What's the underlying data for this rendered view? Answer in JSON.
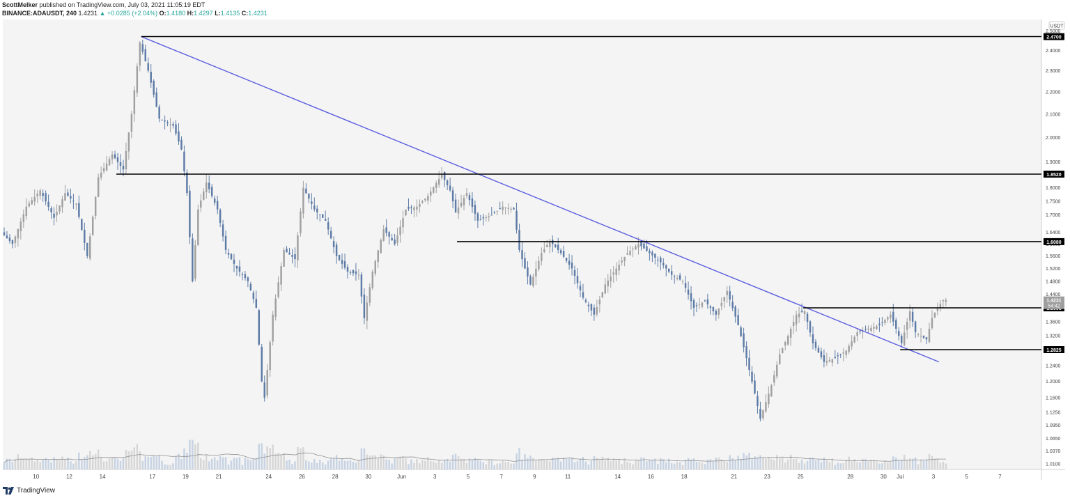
{
  "header": {
    "author": "ScottMelker",
    "published_text": "published on TradingView.com, July 03, 2021 11:05:19 EDT",
    "symbol": "BINANCE:ADAUSDT, 240",
    "last": "1.4231",
    "change_arrow": "▲",
    "change": "+0.0285 (+2.04%)",
    "o_label": "O:",
    "o_value": "1.4180",
    "h_label": "H:",
    "h_value": "1.4297",
    "l_label": "L:",
    "l_value": "1.4135",
    "c_label": "C:",
    "c_value": "1.4231"
  },
  "footer": {
    "brand": "TradingView",
    "logo_icon": "tradingview-logo-icon"
  },
  "colors": {
    "chart_bg": "#f4f4f4",
    "bull": "#a0a0a0",
    "bear": "#5d7ba6",
    "trendline": "#5b5ee0",
    "level_line": "#000000",
    "volume_bull": "#d6d6d6",
    "volume_bear": "#c7d3e3",
    "volume_ma": "#909090",
    "price_tag_bg": "#000000",
    "current_price_bg": "#9e9e9e"
  },
  "chart_data": {
    "type": "candlestick",
    "title": "",
    "currency_label": "USDT",
    "y_scale": "log",
    "ylim": [
      0.998,
      2.56
    ],
    "xlim": [
      "2021-05-08T00:00",
      "2021-07-09T12:00"
    ],
    "candle_interval_hours": 4,
    "grid": false,
    "y_ticks": [
      "1.0100",
      "1.0370",
      "1.0650",
      "1.0950",
      "1.1250",
      "1.1600",
      "1.2000",
      "1.2400",
      "1.2800",
      "1.3200",
      "1.3600",
      "1.3998",
      "1.4400",
      "1.4800",
      "1.5200",
      "1.5600",
      "1.6000",
      "1.6400",
      "1.7000",
      "1.7500",
      "1.8000",
      "1.8520",
      "1.9000",
      "2.0000",
      "2.1000",
      "2.2000",
      "2.3000",
      "2.4000",
      "2.4700",
      "2.5000"
    ],
    "x_ticks": [
      {
        "label": "10",
        "date": "2021-05-10"
      },
      {
        "label": "12",
        "date": "2021-05-12"
      },
      {
        "label": "14",
        "date": "2021-05-14"
      },
      {
        "label": "17",
        "date": "2021-05-17"
      },
      {
        "label": "19",
        "date": "2021-05-19"
      },
      {
        "label": "21",
        "date": "2021-05-21"
      },
      {
        "label": "24",
        "date": "2021-05-24"
      },
      {
        "label": "26",
        "date": "2021-05-26"
      },
      {
        "label": "28",
        "date": "2021-05-28"
      },
      {
        "label": "30",
        "date": "2021-05-30"
      },
      {
        "label": "Jun",
        "date": "2021-06-01"
      },
      {
        "label": "3",
        "date": "2021-06-03"
      },
      {
        "label": "5",
        "date": "2021-06-05"
      },
      {
        "label": "7",
        "date": "2021-06-07"
      },
      {
        "label": "9",
        "date": "2021-06-09"
      },
      {
        "label": "11",
        "date": "2021-06-11"
      },
      {
        "label": "14",
        "date": "2021-06-14"
      },
      {
        "label": "16",
        "date": "2021-06-16"
      },
      {
        "label": "18",
        "date": "2021-06-18"
      },
      {
        "label": "21",
        "date": "2021-06-21"
      },
      {
        "label": "23",
        "date": "2021-06-23"
      },
      {
        "label": "25",
        "date": "2021-06-25"
      },
      {
        "label": "28",
        "date": "2021-06-28"
      },
      {
        "label": "30",
        "date": "2021-06-30"
      },
      {
        "label": "Jul",
        "date": "2021-07-01"
      },
      {
        "label": "3",
        "date": "2021-07-03"
      },
      {
        "label": "5",
        "date": "2021-07-05"
      },
      {
        "label": "7",
        "date": "2021-07-07"
      }
    ],
    "price_path": [
      [
        "2021-05-08T00:00",
        1.64
      ],
      [
        "2021-05-08T16:00",
        1.6
      ],
      [
        "2021-05-09T12:00",
        1.73
      ],
      [
        "2021-05-10T08:00",
        1.79
      ],
      [
        "2021-05-11T04:00",
        1.69
      ],
      [
        "2021-05-11T20:00",
        1.78
      ],
      [
        "2021-05-12T12:00",
        1.74
      ],
      [
        "2021-05-13T04:00",
        1.56
      ],
      [
        "2021-05-13T20:00",
        1.84
      ],
      [
        "2021-05-14T16:00",
        1.93
      ],
      [
        "2021-05-15T08:00",
        1.87
      ],
      [
        "2021-05-15T20:00",
        2.1
      ],
      [
        "2021-05-16T08:00",
        2.44
      ],
      [
        "2021-05-16T20:00",
        2.3
      ],
      [
        "2021-05-17T12:00",
        2.08
      ],
      [
        "2021-05-18T08:00",
        2.05
      ],
      [
        "2021-05-18T20:00",
        1.95
      ],
      [
        "2021-05-19T04:00",
        1.78
      ],
      [
        "2021-05-19T12:00",
        1.48
      ],
      [
        "2021-05-19T20:00",
        1.72
      ],
      [
        "2021-05-20T08:00",
        1.82
      ],
      [
        "2021-05-21T00:00",
        1.72
      ],
      [
        "2021-05-21T12:00",
        1.58
      ],
      [
        "2021-05-22T04:00",
        1.52
      ],
      [
        "2021-05-22T20:00",
        1.48
      ],
      [
        "2021-05-23T08:00",
        1.4
      ],
      [
        "2021-05-23T16:00",
        1.2
      ],
      [
        "2021-05-23T20:00",
        1.16
      ],
      [
        "2021-05-24T08:00",
        1.38
      ],
      [
        "2021-05-25T00:00",
        1.58
      ],
      [
        "2021-05-25T16:00",
        1.55
      ],
      [
        "2021-05-26T04:00",
        1.8
      ],
      [
        "2021-05-26T20:00",
        1.72
      ],
      [
        "2021-05-27T12:00",
        1.68
      ],
      [
        "2021-05-28T04:00",
        1.56
      ],
      [
        "2021-05-28T20:00",
        1.51
      ],
      [
        "2021-05-29T12:00",
        1.5
      ],
      [
        "2021-05-29T20:00",
        1.37
      ],
      [
        "2021-05-30T08:00",
        1.51
      ],
      [
        "2021-05-31T00:00",
        1.65
      ],
      [
        "2021-05-31T16:00",
        1.6
      ],
      [
        "2021-06-01T08:00",
        1.72
      ],
      [
        "2021-06-02T00:00",
        1.73
      ],
      [
        "2021-06-02T16:00",
        1.77
      ],
      [
        "2021-06-03T12:00",
        1.85
      ],
      [
        "2021-06-04T00:00",
        1.79
      ],
      [
        "2021-06-04T08:00",
        1.71
      ],
      [
        "2021-06-05T00:00",
        1.78
      ],
      [
        "2021-06-05T16:00",
        1.68
      ],
      [
        "2021-06-06T12:00",
        1.7
      ],
      [
        "2021-06-07T04:00",
        1.73
      ],
      [
        "2021-06-07T20:00",
        1.72
      ],
      [
        "2021-06-08T04:00",
        1.58
      ],
      [
        "2021-06-08T12:00",
        1.52
      ],
      [
        "2021-06-08T20:00",
        1.47
      ],
      [
        "2021-06-09T12:00",
        1.57
      ],
      [
        "2021-06-10T00:00",
        1.61
      ],
      [
        "2021-06-10T16:00",
        1.57
      ],
      [
        "2021-06-11T08:00",
        1.52
      ],
      [
        "2021-06-12T00:00",
        1.43
      ],
      [
        "2021-06-12T16:00",
        1.38
      ],
      [
        "2021-06-13T08:00",
        1.47
      ],
      [
        "2021-06-14T00:00",
        1.52
      ],
      [
        "2021-06-14T16:00",
        1.57
      ],
      [
        "2021-06-15T08:00",
        1.6
      ],
      [
        "2021-06-16T00:00",
        1.57
      ],
      [
        "2021-06-16T16:00",
        1.54
      ],
      [
        "2021-06-17T08:00",
        1.5
      ],
      [
        "2021-06-18T00:00",
        1.48
      ],
      [
        "2021-06-18T16:00",
        1.4
      ],
      [
        "2021-06-19T08:00",
        1.42
      ],
      [
        "2021-06-20T00:00",
        1.38
      ],
      [
        "2021-06-20T16:00",
        1.45
      ],
      [
        "2021-06-21T08:00",
        1.35
      ],
      [
        "2021-06-21T20:00",
        1.26
      ],
      [
        "2021-06-22T08:00",
        1.17
      ],
      [
        "2021-06-22T16:00",
        1.11
      ],
      [
        "2021-06-23T08:00",
        1.19
      ],
      [
        "2021-06-23T20:00",
        1.27
      ],
      [
        "2021-06-24T08:00",
        1.32
      ],
      [
        "2021-06-24T20:00",
        1.38
      ],
      [
        "2021-06-25T08:00",
        1.39
      ],
      [
        "2021-06-25T20:00",
        1.3
      ],
      [
        "2021-06-26T12:00",
        1.25
      ],
      [
        "2021-06-27T04:00",
        1.26
      ],
      [
        "2021-06-27T20:00",
        1.28
      ],
      [
        "2021-06-28T12:00",
        1.33
      ],
      [
        "2021-06-29T04:00",
        1.34
      ],
      [
        "2021-06-29T20:00",
        1.35
      ],
      [
        "2021-06-30T12:00",
        1.38
      ],
      [
        "2021-06-30T20:00",
        1.34
      ],
      [
        "2021-07-01T04:00",
        1.3
      ],
      [
        "2021-07-01T16:00",
        1.39
      ],
      [
        "2021-07-02T00:00",
        1.33
      ],
      [
        "2021-07-02T16:00",
        1.31
      ],
      [
        "2021-07-03T00:00",
        1.37
      ],
      [
        "2021-07-03T08:00",
        1.4
      ],
      [
        "2021-07-03T16:00",
        1.4231
      ]
    ],
    "trendline": {
      "start": [
        "2021-05-16T08:00",
        2.47
      ],
      "end": [
        "2021-07-03T08:00",
        1.25
      ]
    },
    "horizontal_levels": [
      {
        "label": "2.4700",
        "value": 2.47,
        "start": "2021-05-16T08:00"
      },
      {
        "label": "1.8520",
        "value": 1.852,
        "start": "2021-05-14T20:00"
      },
      {
        "label": "1.6080",
        "value": 1.608,
        "start": "2021-06-04T08:00"
      },
      {
        "label": "1.3998",
        "value": 1.3998,
        "start": "2021-06-25T04:00"
      },
      {
        "label": "1.2825",
        "value": 1.2825,
        "start": "2021-07-01T00:00"
      }
    ],
    "last_price": {
      "label": "1.4231",
      "value": 1.4231,
      "countdown": "54:42"
    }
  }
}
